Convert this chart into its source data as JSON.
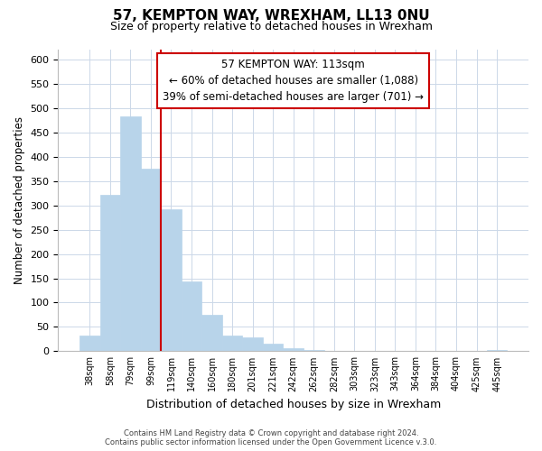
{
  "title": "57, KEMPTON WAY, WREXHAM, LL13 0NU",
  "subtitle": "Size of property relative to detached houses in Wrexham",
  "xlabel": "Distribution of detached houses by size in Wrexham",
  "ylabel": "Number of detached properties",
  "bar_labels": [
    "38sqm",
    "58sqm",
    "79sqm",
    "99sqm",
    "119sqm",
    "140sqm",
    "160sqm",
    "180sqm",
    "201sqm",
    "221sqm",
    "242sqm",
    "262sqm",
    "282sqm",
    "303sqm",
    "323sqm",
    "343sqm",
    "364sqm",
    "384sqm",
    "404sqm",
    "425sqm",
    "445sqm"
  ],
  "bar_heights": [
    32,
    322,
    483,
    375,
    291,
    144,
    75,
    32,
    29,
    16,
    7,
    2,
    1,
    1,
    0,
    0,
    0,
    0,
    0,
    0,
    2
  ],
  "bar_color": "#b8d4ea",
  "bar_edge_color": "#b8d4ea",
  "vline_x_index": 4,
  "vline_color": "#cc0000",
  "ylim": [
    0,
    620
  ],
  "yticks": [
    0,
    50,
    100,
    150,
    200,
    250,
    300,
    350,
    400,
    450,
    500,
    550,
    600
  ],
  "annotation_title": "57 KEMPTON WAY: 113sqm",
  "annotation_line1": "← 60% of detached houses are smaller (1,088)",
  "annotation_line2": "39% of semi-detached houses are larger (701) →",
  "annotation_box_color": "#ffffff",
  "annotation_box_edge": "#cc0000",
  "annotation_fontsize": 8.5,
  "title_fontsize": 11,
  "subtitle_fontsize": 9,
  "footer_line1": "Contains HM Land Registry data © Crown copyright and database right 2024.",
  "footer_line2": "Contains public sector information licensed under the Open Government Licence v.3.0.",
  "background_color": "#ffffff",
  "grid_color": "#ccd8e8"
}
